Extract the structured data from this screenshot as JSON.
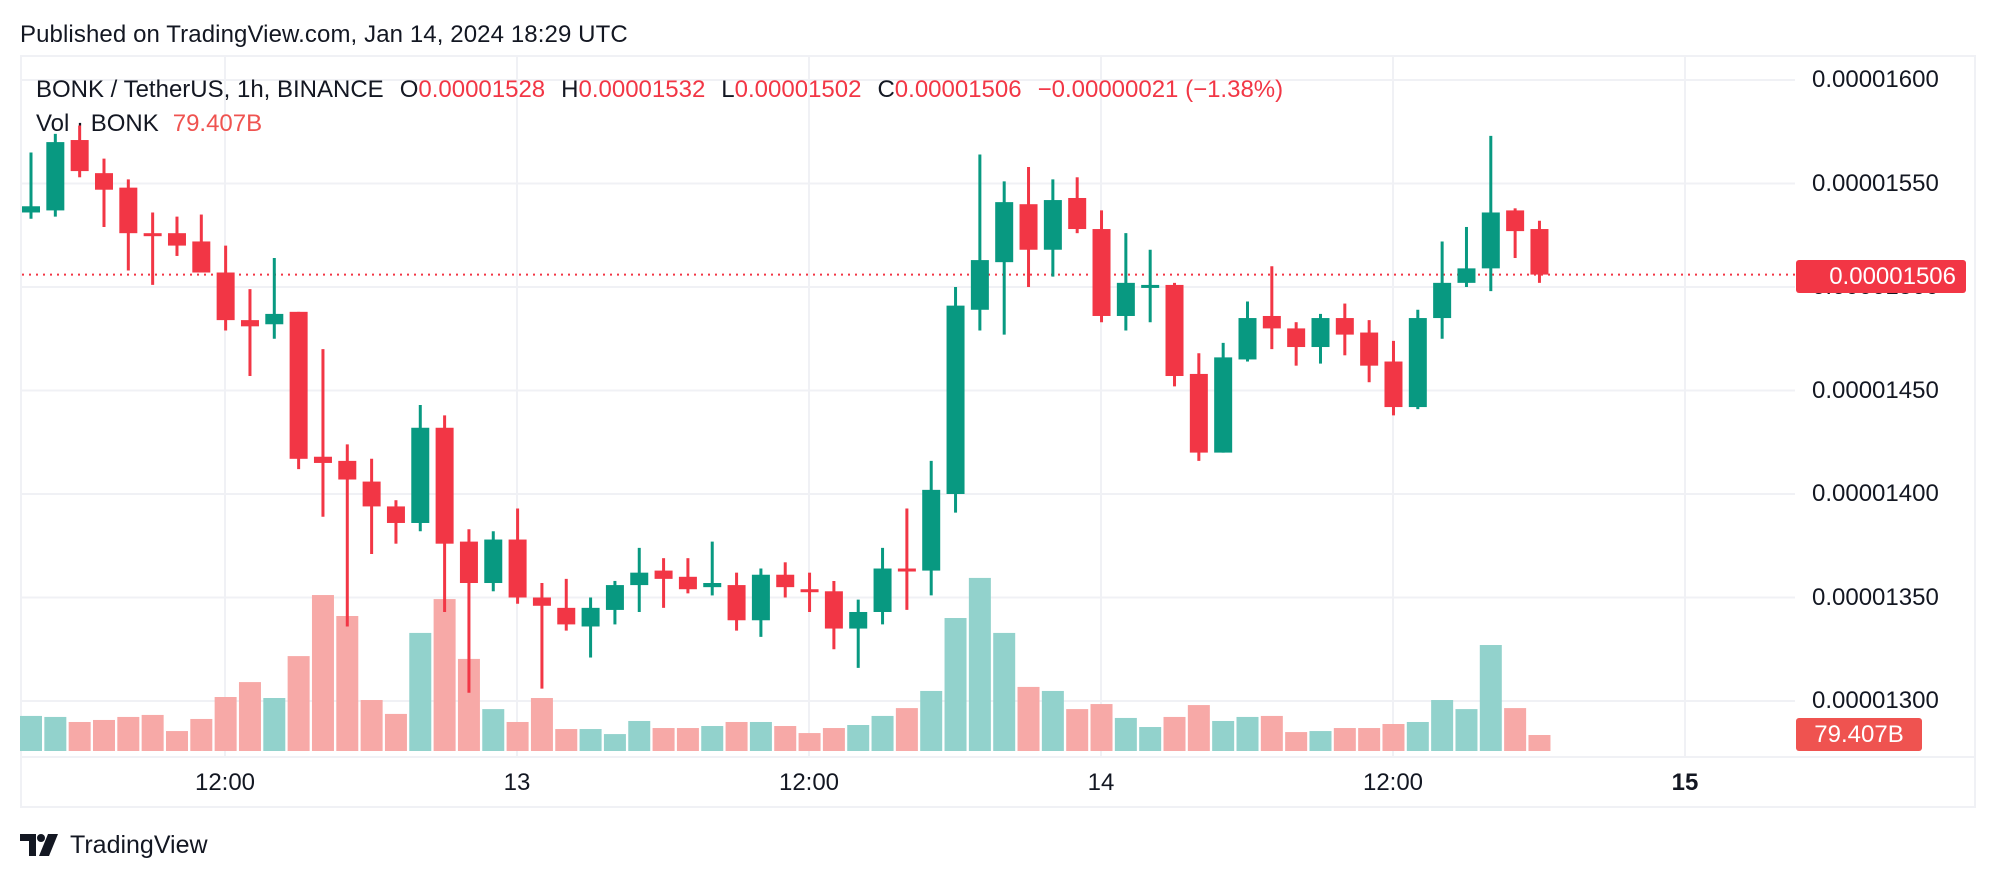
{
  "header": {
    "published": "Published on TradingView.com, Jan 14, 2024 18:29 UTC"
  },
  "legend": {
    "symbol": "BONK / TetherUS, 1h, BINANCE",
    "open_label": "O",
    "open": "0.00001528",
    "high_label": "H",
    "high": "0.00001532",
    "low_label": "L",
    "low": "0.00001502",
    "close_label": "C",
    "close": "0.00001506",
    "change": "−0.00000021 (−1.38%)"
  },
  "volume_legend": {
    "label": "Vol · BONK",
    "value": "79.407B"
  },
  "price_axis": {
    "ticks": [
      "0.00001600",
      "0.00001550",
      "0.00001500",
      "0.00001450",
      "0.00001400",
      "0.00001350",
      "0.00001300"
    ],
    "last_price_badge": "0.00001506",
    "volume_badge": "79.407B"
  },
  "time_axis": {
    "ticks": [
      {
        "label": "12:00",
        "bold": false
      },
      {
        "label": "13",
        "bold": false
      },
      {
        "label": "12:00",
        "bold": false
      },
      {
        "label": "14",
        "bold": false
      },
      {
        "label": "12:00",
        "bold": false
      },
      {
        "label": "15",
        "bold": true
      }
    ]
  },
  "footer": {
    "brand": "TradingView"
  },
  "colors": {
    "up": "#089981",
    "down": "#f23645",
    "vol_up": "#92d2cc",
    "vol_down": "#f7a9a7",
    "grid": "#f0f1f5"
  },
  "chart_data": {
    "type": "candlestick",
    "title": "BONK / TetherUS, 1h, BINANCE",
    "price_unit": "1e-8 USDT (e.g. 1528 = 0.00001528)",
    "volume_unit": "billions BONK",
    "ylim": [
      1270,
      1610
    ],
    "x_tick_labels": [
      "12:00",
      "13",
      "12:00",
      "14",
      "12:00",
      "15"
    ],
    "y_tick_labels": [
      "0.00001300",
      "0.00001350",
      "0.00001400",
      "0.00001450",
      "0.00001500",
      "0.00001550",
      "0.00001600"
    ],
    "last_price": 1506,
    "candles": [
      [
        1536,
        1565,
        1533,
        1539,
        174
      ],
      [
        1537,
        1574,
        1534,
        1570,
        169
      ],
      [
        1571,
        1578,
        1553,
        1556,
        144
      ],
      [
        1555,
        1562,
        1529,
        1547,
        154
      ],
      [
        1548,
        1552,
        1508,
        1526,
        169
      ],
      [
        1526,
        1536,
        1501,
        1525,
        179
      ],
      [
        1526,
        1534,
        1515,
        1520,
        99
      ],
      [
        1522,
        1535,
        1507,
        1507,
        159
      ],
      [
        1507,
        1520,
        1479,
        1484,
        268
      ],
      [
        1484,
        1499,
        1457,
        1481,
        342
      ],
      [
        1482,
        1514,
        1475,
        1487,
        263
      ],
      [
        1488,
        1488,
        1412,
        1417,
        471
      ],
      [
        1418,
        1470,
        1389,
        1415,
        774
      ],
      [
        1416,
        1424,
        1336,
        1407,
        670
      ],
      [
        1406,
        1417,
        1371,
        1394,
        253
      ],
      [
        1394,
        1397,
        1376,
        1386,
        184
      ],
      [
        1386,
        1443,
        1382,
        1432,
        586
      ],
      [
        1432,
        1438,
        1343,
        1376,
        754
      ],
      [
        1377,
        1383,
        1304,
        1357,
        457
      ],
      [
        1357,
        1382,
        1353,
        1378,
        208
      ],
      [
        1378,
        1393,
        1347,
        1350,
        144
      ],
      [
        1350,
        1357,
        1306,
        1346,
        263
      ],
      [
        1345,
        1359,
        1334,
        1337,
        109
      ],
      [
        1336,
        1350,
        1321,
        1345,
        109
      ],
      [
        1344,
        1358,
        1337,
        1356,
        84
      ],
      [
        1356,
        1374,
        1343,
        1362,
        149
      ],
      [
        1363,
        1369,
        1345,
        1359,
        114
      ],
      [
        1360,
        1369,
        1352,
        1354,
        114
      ],
      [
        1355,
        1377,
        1351,
        1357,
        124
      ],
      [
        1356,
        1362,
        1334,
        1339,
        144
      ],
      [
        1339,
        1364,
        1331,
        1361,
        144
      ],
      [
        1361,
        1367,
        1350,
        1355,
        124
      ],
      [
        1354,
        1362,
        1343,
        1353,
        89
      ],
      [
        1353,
        1358,
        1325,
        1335,
        114
      ],
      [
        1335,
        1349,
        1316,
        1343,
        129
      ],
      [
        1343,
        1374,
        1337,
        1364,
        174
      ],
      [
        1364,
        1393,
        1344,
        1363,
        213
      ],
      [
        1363,
        1416,
        1351,
        1402,
        298
      ],
      [
        1400,
        1500,
        1391,
        1491,
        660
      ],
      [
        1489,
        1564,
        1479,
        1513,
        859
      ],
      [
        1512,
        1551,
        1477,
        1541,
        586
      ],
      [
        1540,
        1558,
        1500,
        1518,
        318
      ],
      [
        1518,
        1552,
        1505,
        1542,
        298
      ],
      [
        1543,
        1553,
        1526,
        1528,
        208
      ],
      [
        1528,
        1537,
        1483,
        1486,
        233
      ],
      [
        1486,
        1526,
        1479,
        1502,
        164
      ],
      [
        1500,
        1518,
        1483,
        1501,
        119
      ],
      [
        1501,
        1502,
        1452,
        1457,
        169
      ],
      [
        1458,
        1468,
        1416,
        1420,
        228
      ],
      [
        1420,
        1473,
        1420,
        1466,
        149
      ],
      [
        1465,
        1493,
        1464,
        1485,
        169
      ],
      [
        1486,
        1510,
        1470,
        1480,
        174
      ],
      [
        1480,
        1483,
        1462,
        1471,
        94
      ],
      [
        1471,
        1487,
        1463,
        1485,
        99
      ],
      [
        1485,
        1492,
        1467,
        1477,
        114
      ],
      [
        1478,
        1484,
        1454,
        1462,
        114
      ],
      [
        1464,
        1474,
        1438,
        1442,
        134
      ],
      [
        1442,
        1489,
        1441,
        1485,
        144
      ],
      [
        1485,
        1522,
        1475,
        1502,
        253
      ],
      [
        1502,
        1529,
        1500,
        1509,
        208
      ],
      [
        1509,
        1573,
        1498,
        1536,
        526
      ],
      [
        1537,
        1538,
        1514,
        1527,
        213
      ],
      [
        1528,
        1532,
        1502,
        1506,
        79.407
      ]
    ],
    "candle_fields": [
      "open",
      "high",
      "low",
      "close",
      "volume"
    ]
  }
}
